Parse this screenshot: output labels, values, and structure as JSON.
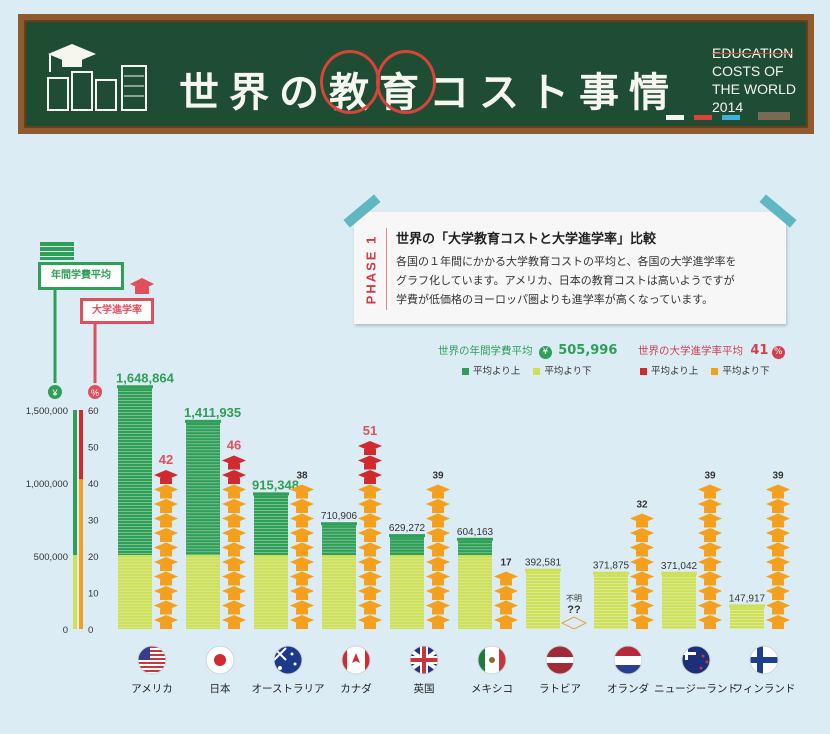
{
  "header": {
    "title": "世界の教育コスト事情",
    "en_title_lines": [
      "EDUCATION",
      "COSTS OF",
      "THE WORLD",
      "2014"
    ]
  },
  "phase": {
    "label": "PHASE 1",
    "heading": "世界の「大学教育コストと大学進学率」比較",
    "body_lines": [
      "各国の１年間にかかる大学教育コストの平均と、各国の大学進学率を",
      "グラフ化しています。アメリカ、日本の教育コストは高いようですが",
      "学費が低価格のヨーロッパ圏よりも進学率が高くなっています。"
    ]
  },
  "averages": {
    "cost_label": "世界の年間学費平均",
    "cost_symbol": "¥",
    "cost_value": "505,996",
    "rate_label": "世界の大学進学率平均",
    "rate_value": "41",
    "rate_symbol": "%"
  },
  "legend": {
    "cost_above": "平均より上",
    "cost_below": "平均より下",
    "rate_above": "平均より上",
    "rate_below": "平均より下"
  },
  "keys": {
    "cost_key": "年間学費平均",
    "rate_key": "大学進学率",
    "yen_symbol": "¥",
    "pct_symbol": "%"
  },
  "colors": {
    "cost_above": "#2f9e57",
    "cost_below": "#cde05a",
    "rate_above": "#d02a2f",
    "rate_below": "#f5a01c",
    "rate_accent": "#e0505c"
  },
  "chart_data": {
    "type": "bar",
    "title": "",
    "y_left": {
      "ticks": [
        "1,500,000",
        "1,000,000",
        "500,000",
        "0"
      ],
      "ylim": [
        0,
        1500000
      ]
    },
    "y_right": {
      "ticks": [
        "60",
        "50",
        "40",
        "30",
        "20",
        "10",
        "0"
      ],
      "ylim": [
        0,
        60
      ]
    },
    "cost_average": 505996,
    "rate_average": 41,
    "categories": [
      "アメリカ",
      "日本",
      "オーストラリア",
      "カナダ",
      "英国",
      "メキシコ",
      "ラトビア",
      "オランダ",
      "ニュージーランド",
      "フィンランド"
    ],
    "series": [
      {
        "name": "年間学費平均",
        "values": [
          1648864,
          1411935,
          915348,
          710906,
          629272,
          604163,
          392581,
          371875,
          371042,
          147917
        ],
        "labels": [
          "1,648,864",
          "1,411,935",
          "915,348",
          "710,906",
          "629,272",
          "604,163",
          "392,581",
          "371,875",
          "371,042",
          "147,917"
        ]
      },
      {
        "name": "大学進学率",
        "values": [
          42,
          46,
          38,
          51,
          39,
          17,
          null,
          32,
          39,
          39
        ],
        "labels": [
          "42",
          "46",
          "38",
          "51",
          "39",
          "17",
          "??",
          "32",
          "39",
          "39"
        ]
      }
    ],
    "unknown_note": "不明"
  }
}
